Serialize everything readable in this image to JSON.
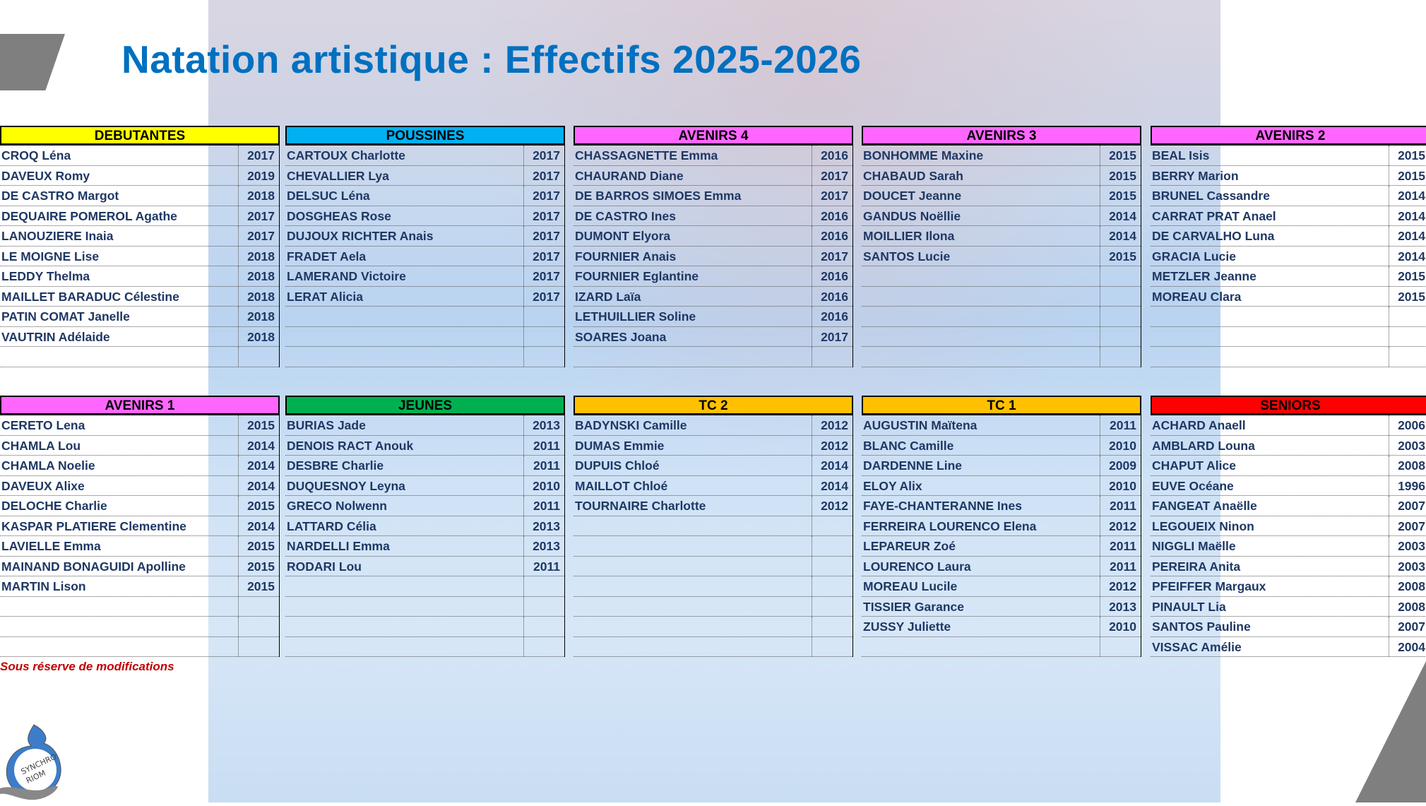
{
  "title": "Natation artistique : Effectifs 2025-2026",
  "note": "Sous réserve de modifications",
  "logo_text": "Synchro Riom",
  "colors": {
    "title": "#0070C0",
    "names": "#1F3864",
    "note": "#C00000"
  },
  "groups": [
    {
      "name": "DEBUTANTES",
      "color": "#FFFF00",
      "members": [
        [
          "CROQ Léna",
          "2017"
        ],
        [
          "DAVEUX Romy",
          "2019"
        ],
        [
          "DE CASTRO Margot",
          "2018"
        ],
        [
          "DEQUAIRE POMEROL Agathe",
          "2017"
        ],
        [
          "LANOUZIERE Inaia",
          "2017"
        ],
        [
          "LE MOIGNE Lise",
          "2018"
        ],
        [
          "LEDDY Thelma",
          "2018"
        ],
        [
          "MAILLET BARADUC Célestine",
          "2018"
        ],
        [
          "PATIN COMAT Janelle",
          "2018"
        ],
        [
          "VAUTRIN Adélaide",
          "2018"
        ]
      ]
    },
    {
      "name": "POUSSINES",
      "color": "#00B0F0",
      "members": [
        [
          "CARTOUX Charlotte",
          "2017"
        ],
        [
          "CHEVALLIER Lya",
          "2017"
        ],
        [
          "DELSUC Léna",
          "2017"
        ],
        [
          "DOSGHEAS Rose",
          "2017"
        ],
        [
          "DUJOUX RICHTER Anais",
          "2017"
        ],
        [
          "FRADET Aela",
          "2017"
        ],
        [
          "LAMERAND Victoire",
          "2017"
        ],
        [
          "LERAT Alicia",
          "2017"
        ]
      ]
    },
    {
      "name": "AVENIRS 4",
      "color": "#FF66FF",
      "members": [
        [
          "CHASSAGNETTE Emma",
          "2016"
        ],
        [
          "CHAURAND Diane",
          "2017"
        ],
        [
          "DE BARROS SIMOES Emma",
          "2017"
        ],
        [
          "DE CASTRO Ines",
          "2016"
        ],
        [
          "DUMONT Elyora",
          "2016"
        ],
        [
          "FOURNIER Anais",
          "2017"
        ],
        [
          "FOURNIER Eglantine",
          "2016"
        ],
        [
          "IZARD Laïa",
          "2016"
        ],
        [
          "LETHUILLIER Soline",
          "2016"
        ],
        [
          "SOARES Joana",
          "2017"
        ]
      ]
    },
    {
      "name": "AVENIRS 3",
      "color": "#FF66FF",
      "members": [
        [
          "BONHOMME Maxine",
          "2015"
        ],
        [
          "CHABAUD Sarah",
          "2015"
        ],
        [
          "DOUCET Jeanne",
          "2015"
        ],
        [
          "GANDUS Noëllie",
          "2014"
        ],
        [
          "MOILLIER Ilona",
          "2014"
        ],
        [
          "SANTOS Lucie",
          "2015"
        ]
      ]
    },
    {
      "name": "AVENIRS 2",
      "color": "#FF66FF",
      "members": [
        [
          "BEAL Isis",
          "2015"
        ],
        [
          "BERRY Marion",
          "2015"
        ],
        [
          "BRUNEL Cassandre",
          "2014"
        ],
        [
          "CARRAT PRAT Anael",
          "2014"
        ],
        [
          "DE CARVALHO Luna",
          "2014"
        ],
        [
          "GRACIA Lucie",
          "2014"
        ],
        [
          "METZLER Jeanne",
          "2015"
        ],
        [
          "MOREAU Clara",
          "2015"
        ]
      ]
    },
    {
      "name": "AVENIRS 1",
      "color": "#FF66FF",
      "members": [
        [
          "CERETO Lena",
          "2015"
        ],
        [
          "CHAMLA Lou",
          "2014"
        ],
        [
          "CHAMLA Noelie",
          "2014"
        ],
        [
          "DAVEUX Alixe",
          "2014"
        ],
        [
          "DELOCHE Charlie",
          "2015"
        ],
        [
          "KASPAR PLATIERE Clementine",
          "2014"
        ],
        [
          "LAVIELLE Emma",
          "2015"
        ],
        [
          "MAINAND BONAGUIDI Apolline",
          "2015"
        ],
        [
          "MARTIN Lison",
          "2015"
        ]
      ]
    },
    {
      "name": "JEUNES",
      "color": "#00B050",
      "members": [
        [
          "BURIAS Jade",
          "2013"
        ],
        [
          "DENOIS RACT Anouk",
          "2011"
        ],
        [
          "DESBRE Charlie",
          "2011"
        ],
        [
          "DUQUESNOY Leyna",
          "2010"
        ],
        [
          "GRECO Nolwenn",
          "2011"
        ],
        [
          "LATTARD Célia",
          "2013"
        ],
        [
          "NARDELLI Emma",
          "2013"
        ],
        [
          "RODARI Lou",
          "2011"
        ]
      ]
    },
    {
      "name": "TC 2",
      "color": "#FFC000",
      "members": [
        [
          "BADYNSKI Camille",
          "2012"
        ],
        [
          "DUMAS Emmie",
          "2012"
        ],
        [
          "DUPUIS Chloé",
          "2014"
        ],
        [
          "MAILLOT Chloé",
          "2014"
        ],
        [
          "TOURNAIRE Charlotte",
          "2012"
        ]
      ]
    },
    {
      "name": "TC 1",
      "color": "#FFC000",
      "members": [
        [
          "AUGUSTIN Maïtena",
          "2011"
        ],
        [
          "BLANC Camille",
          "2010"
        ],
        [
          "DARDENNE Line",
          "2009"
        ],
        [
          "ELOY Alix",
          "2010"
        ],
        [
          "FAYE-CHANTERANNE Ines",
          "2011"
        ],
        [
          "FERREIRA LOURENCO Elena",
          "2012"
        ],
        [
          "LEPAREUR Zoé",
          "2011"
        ],
        [
          "LOURENCO Laura",
          "2011"
        ],
        [
          "MOREAU Lucile",
          "2012"
        ],
        [
          "TISSIER Garance",
          "2013"
        ],
        [
          "ZUSSY Juliette",
          "2010"
        ]
      ]
    },
    {
      "name": "SENIORS",
      "color": "#FF0000",
      "members": [
        [
          "ACHARD Anaell",
          "2006"
        ],
        [
          "AMBLARD Louna",
          "2003"
        ],
        [
          "CHAPUT Alice",
          "2008"
        ],
        [
          "EUVE Océane",
          "1996"
        ],
        [
          "FANGEAT Anaëlle",
          "2007"
        ],
        [
          "LEGOUEIX Ninon",
          "2007"
        ],
        [
          "NIGGLI Maëlle",
          "2003"
        ],
        [
          "PEREIRA Anita",
          "2003"
        ],
        [
          "PFEIFFER Margaux",
          "2008"
        ],
        [
          "PINAULT Lia",
          "2008"
        ],
        [
          "SANTOS Pauline",
          "2007"
        ],
        [
          "VISSAC Amélie",
          "2004"
        ]
      ]
    }
  ]
}
